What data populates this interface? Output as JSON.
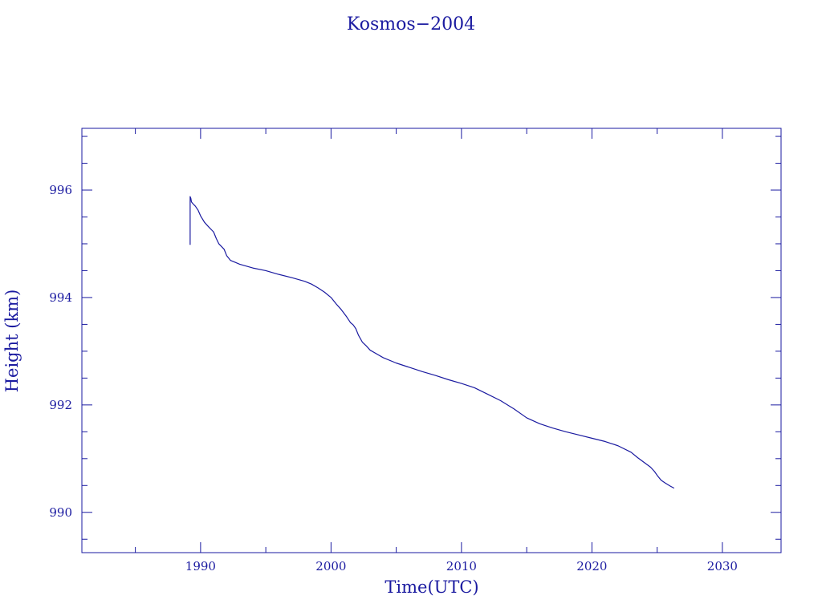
{
  "chart_data": {
    "type": "line",
    "title": "Kosmos−2004",
    "xlabel": "Time(UTC)",
    "ylabel": "Height (km)",
    "xlim": [
      1980.9,
      2034.5
    ],
    "ylim": [
      989.25,
      997.15
    ],
    "x_major_ticks": [
      1990,
      2000,
      2010,
      2020,
      2030
    ],
    "x_tick_labels": [
      "1990",
      "2000",
      "2010",
      "2020",
      "2030"
    ],
    "x_minor_step": 5,
    "y_major_ticks": [
      990,
      992,
      994,
      996
    ],
    "y_tick_labels": [
      "990",
      "992",
      "994",
      "996"
    ],
    "y_minor_step": 0.5,
    "grid": false,
    "colors": {
      "line": "#1a1aa0",
      "text": "#1a1aa0",
      "frame": "#1a1aa0"
    },
    "series": [
      {
        "x": [
          1989.2,
          1989.2,
          1989.25,
          1989.3,
          1989.4,
          1989.6,
          1989.8,
          1990.0,
          1990.3,
          1990.6,
          1991.0,
          1991.2,
          1991.4,
          1991.8,
          1992.0,
          1992.3,
          1992.6,
          1993.0,
          1994.0,
          1995.0,
          1996.0,
          1997.0,
          1998.0,
          1998.5,
          1999.0,
          1999.5,
          2000.0,
          2000.4,
          2000.8,
          2001.2,
          2001.5,
          2001.7,
          2001.9,
          2002.1,
          2002.4,
          2002.7,
          2003.0,
          2003.5,
          2004.0,
          2005.0,
          2006.0,
          2007.0,
          2008.0,
          2009.0,
          2010.0,
          2011.0,
          2012.0,
          2013.0,
          2014.0,
          2015.0,
          2016.0,
          2017.0,
          2018.0,
          2019.0,
          2020.0,
          2021.0,
          2022.0,
          2023.0,
          2023.5,
          2024.0,
          2024.5,
          2024.8,
          2025.0,
          2025.3,
          2025.6,
          2026.0,
          2026.3
        ],
        "y": [
          994.98,
          995.88,
          995.85,
          995.78,
          995.75,
          995.7,
          995.63,
          995.52,
          995.4,
          995.32,
          995.22,
          995.1,
          995.0,
          994.9,
          994.78,
          994.69,
          994.66,
          994.62,
          994.55,
          994.5,
          994.43,
          994.37,
          994.3,
          994.25,
          994.18,
          994.1,
          994.0,
          993.88,
          993.77,
          993.64,
          993.53,
          993.49,
          993.42,
          993.3,
          993.17,
          993.1,
          993.02,
          992.95,
          992.88,
          992.78,
          992.7,
          992.62,
          992.55,
          992.47,
          992.4,
          992.32,
          992.2,
          992.08,
          991.93,
          991.76,
          991.65,
          991.57,
          991.5,
          991.44,
          991.38,
          991.32,
          991.24,
          991.12,
          991.02,
          990.93,
          990.84,
          990.76,
          990.69,
          990.6,
          990.55,
          990.49,
          990.45
        ]
      }
    ]
  }
}
